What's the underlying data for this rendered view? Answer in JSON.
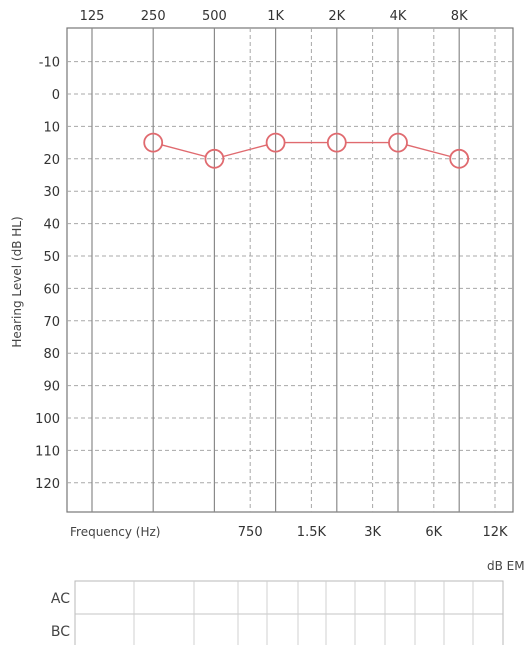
{
  "chart_data": {
    "type": "scatter",
    "title": "",
    "xlabel": "Frequency (Hz)",
    "ylabel": "Hearing Level (dB HL)",
    "x_scale": "log2",
    "y_inverted": true,
    "ylim": [
      -20,
      130
    ],
    "grid": true,
    "xticks_top": [
      {
        "label": "125",
        "hz": 125
      },
      {
        "label": "250",
        "hz": 250
      },
      {
        "label": "500",
        "hz": 500
      },
      {
        "label": "1K",
        "hz": 1000
      },
      {
        "label": "2K",
        "hz": 2000
      },
      {
        "label": "4K",
        "hz": 4000
      },
      {
        "label": "8K",
        "hz": 8000
      }
    ],
    "xticks_bottom": [
      {
        "label": "750",
        "hz": 750
      },
      {
        "label": "1.5K",
        "hz": 1500
      },
      {
        "label": "3K",
        "hz": 3000
      },
      {
        "label": "6K",
        "hz": 6000
      },
      {
        "label": "12K",
        "hz": 12000
      }
    ],
    "yticks": [
      -10,
      0,
      10,
      20,
      30,
      40,
      50,
      60,
      70,
      80,
      90,
      100,
      110,
      120
    ],
    "series": [
      {
        "marker": "circle",
        "color": "#e06a6f",
        "points": [
          {
            "hz": 250,
            "db": 15
          },
          {
            "hz": 500,
            "db": 20
          },
          {
            "hz": 1000,
            "db": 15
          },
          {
            "hz": 2000,
            "db": 15
          },
          {
            "hz": 4000,
            "db": 15
          },
          {
            "hz": 8000,
            "db": 20
          }
        ]
      }
    ],
    "masking_label": "dB EM",
    "masking_table": {
      "rows": [
        {
          "label": "AC"
        },
        {
          "label": "BC"
        }
      ]
    }
  },
  "colors": {
    "grid": "#8a8a8a",
    "grid_dashed": "#a8a8a8",
    "data": "#e06a6f",
    "frame": "#777777"
  }
}
